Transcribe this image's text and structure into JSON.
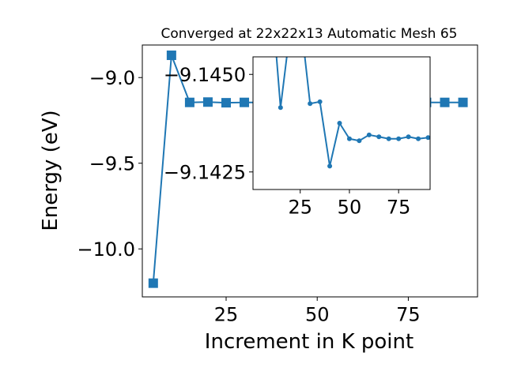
{
  "chart_data": [
    {
      "id": "main",
      "type": "line",
      "title": "Converged at 22x22x13 Automatic Mesh 65",
      "xlabel": "Increment in K point",
      "ylabel": "Energy (eV)",
      "marker": "square",
      "color": "#1f77b4",
      "xlim": [
        2,
        94
      ],
      "ylim": [
        -10.28,
        -8.81
      ],
      "xticks": [
        25,
        50,
        75
      ],
      "yticks": [
        -9.0,
        -9.5,
        -10.0
      ],
      "ytick_labels": [
        "−9.0",
        "−9.5",
        "−10.0"
      ],
      "series": [
        {
          "x": [
            5,
            10,
            15,
            20,
            25,
            30,
            35,
            40,
            45,
            50,
            55,
            60,
            65,
            70,
            75,
            80,
            85,
            90
          ],
          "values": [
            -10.2,
            -8.87,
            -9.145,
            -9.143,
            -9.147,
            -9.145,
            -9.145,
            -9.145,
            -9.145,
            -9.145,
            -9.145,
            -9.145,
            -9.145,
            -9.145,
            -9.145,
            -9.145,
            -9.145,
            -9.145
          ]
        }
      ]
    },
    {
      "id": "inset",
      "type": "line",
      "title": "",
      "xlabel": "",
      "ylabel": "",
      "marker": "circle",
      "color": "#1f77b4",
      "xlim": [
        1,
        91
      ],
      "ylim": [
        -9.14205,
        -9.14545
      ],
      "xticks": [
        25,
        50,
        75
      ],
      "yticks": [
        -9.145,
        -9.1425
      ],
      "ytick_labels": [
        "−9.1450",
        "−9.1425"
      ],
      "series": [
        {
          "x": [
            10,
            15,
            20,
            25,
            30,
            35,
            40,
            45,
            50,
            55,
            60,
            65,
            70,
            75,
            80,
            85,
            90
          ],
          "values": [
            -9.1473,
            -9.14415,
            -9.1462,
            -9.1465,
            -9.14425,
            -9.1443,
            -9.14265,
            -9.14375,
            -9.14335,
            -9.1433,
            -9.14345,
            -9.1434,
            -9.14335,
            -9.14335,
            -9.1434,
            -9.14335,
            -9.14338
          ]
        }
      ]
    }
  ]
}
